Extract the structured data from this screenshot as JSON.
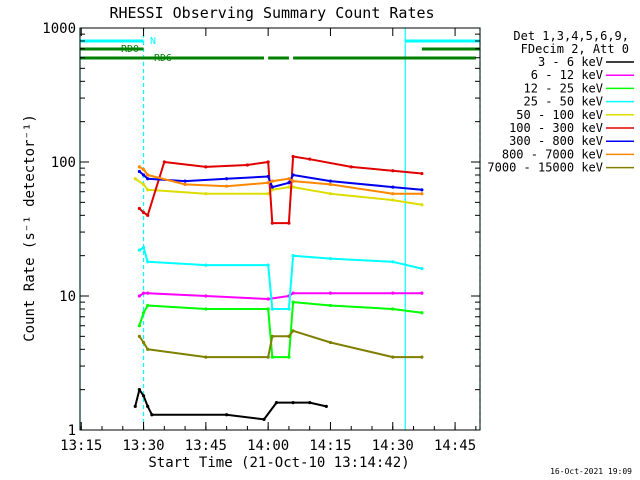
{
  "chart_data": {
    "type": "line",
    "title": "RHESSI Observing Summary Count Rates",
    "xlabel": "Start Time (21-Oct-10 13:14:42)",
    "ylabel": "Count Rate (s⁻¹ detector⁻¹)",
    "y_scale": "log",
    "ylim": [
      1,
      1000
    ],
    "xlim": [
      "13:14:42",
      "14:51:00"
    ],
    "x_ticks": [
      "13:15",
      "13:30",
      "13:45",
      "14:00",
      "14:15",
      "14:30",
      "14:45"
    ],
    "y_ticks": [
      "1",
      "10",
      "100",
      "1000"
    ],
    "grid": false,
    "legend": {
      "placement": "right",
      "header": [
        "Det 1,3,4,5,6,9,",
        "FDecim 2, Att 0"
      ]
    },
    "timestamp": "16-Oct-2021 19:09",
    "series": [
      {
        "name": "3 - 6 keV",
        "color": "#000000",
        "x": [
          "13:28",
          "13:29",
          "13:30",
          "13:31",
          "13:32",
          "13:50",
          "13:59",
          "14:02",
          "14:06",
          "14:10",
          "14:14"
        ],
        "values": [
          1.5,
          2.0,
          1.8,
          1.5,
          1.3,
          1.3,
          1.2,
          1.6,
          1.6,
          1.6,
          1.5
        ]
      },
      {
        "name": "6 - 12 keV",
        "color": "#ff00ff",
        "x": [
          "13:29",
          "13:30",
          "13:31",
          "13:45",
          "14:00",
          "14:05",
          "14:06",
          "14:15",
          "14:30",
          "14:37"
        ],
        "values": [
          10,
          10.5,
          10.5,
          10,
          9.5,
          10,
          10.5,
          10.5,
          10.5,
          10.5
        ]
      },
      {
        "name": "12 - 25 keV",
        "color": "#00ff00",
        "x": [
          "13:29",
          "13:30",
          "13:31",
          "13:45",
          "14:00",
          "14:01",
          "14:05",
          "14:06",
          "14:15",
          "14:30",
          "14:37"
        ],
        "values": [
          6,
          7.5,
          8.5,
          8,
          8,
          3.5,
          3.5,
          9,
          8.5,
          8,
          7.5
        ]
      },
      {
        "name": "25 - 50 keV",
        "color": "#00ffff",
        "x": [
          "13:29",
          "13:30",
          "13:31",
          "13:45",
          "14:00",
          "14:01",
          "14:05",
          "14:06",
          "14:15",
          "14:30",
          "14:37"
        ],
        "values": [
          22,
          23,
          18,
          17,
          17,
          8,
          8,
          20,
          19,
          18,
          16
        ]
      },
      {
        "name": "50 - 100 keV",
        "color": "#dddd00",
        "x": [
          "13:28",
          "13:30",
          "13:31",
          "13:45",
          "14:00",
          "14:01",
          "14:05",
          "14:06",
          "14:15",
          "14:30",
          "14:37"
        ],
        "values": [
          75,
          68,
          62,
          58,
          58,
          62,
          65,
          65,
          58,
          52,
          48
        ]
      },
      {
        "name": "100 - 300 keV",
        "color": "#e00000",
        "x": [
          "13:29",
          "13:30",
          "13:31",
          "13:35",
          "13:45",
          "13:55",
          "14:00",
          "14:01",
          "14:05",
          "14:06",
          "14:10",
          "14:20",
          "14:30",
          "14:37"
        ],
        "values": [
          45,
          42,
          40,
          100,
          92,
          95,
          100,
          35,
          35,
          110,
          105,
          92,
          86,
          82
        ]
      },
      {
        "name": "300 - 800 keV",
        "color": "#0000ee",
        "x": [
          "13:29",
          "13:30",
          "13:31",
          "13:40",
          "13:50",
          "14:00",
          "14:01",
          "14:05",
          "14:06",
          "14:15",
          "14:30",
          "14:37"
        ],
        "values": [
          85,
          80,
          75,
          72,
          75,
          78,
          65,
          70,
          80,
          72,
          65,
          62
        ]
      },
      {
        "name": "800 - 7000 keV",
        "color": "#ff8800",
        "x": [
          "13:29",
          "13:30",
          "13:31",
          "13:40",
          "13:50",
          "14:00",
          "14:01",
          "14:05",
          "14:06",
          "14:15",
          "14:30",
          "14:37"
        ],
        "values": [
          92,
          88,
          80,
          68,
          66,
          70,
          72,
          75,
          72,
          68,
          58,
          58
        ]
      },
      {
        "name": "7000 - 15000 keV",
        "color": "#808000",
        "x": [
          "13:29",
          "13:30",
          "13:31",
          "13:45",
          "14:00",
          "14:01",
          "14:05",
          "14:06",
          "14:15",
          "14:30",
          "14:37"
        ],
        "values": [
          5,
          4.5,
          4,
          3.5,
          3.5,
          5,
          5,
          5.5,
          4.5,
          3.5,
          3.5
        ]
      }
    ],
    "annotations": {
      "rd0_label": "RD0",
      "rd6_label": "RD6",
      "n_label": "N",
      "night_color": "#00ffff",
      "data_color": "#008000",
      "night_periods": [
        [
          "13:14:42",
          "13:30:00"
        ],
        [
          "14:33:00",
          "14:51:00"
        ]
      ],
      "rd0_periods": [
        [
          "13:14:42",
          "13:30:00"
        ],
        [
          "14:37:00",
          "14:51:00"
        ]
      ],
      "rd6_periods": [
        [
          "13:14:42",
          "13:59:00"
        ],
        [
          "14:00:00",
          "14:05:00"
        ],
        [
          "14:06:00",
          "14:50:00"
        ]
      ]
    }
  }
}
